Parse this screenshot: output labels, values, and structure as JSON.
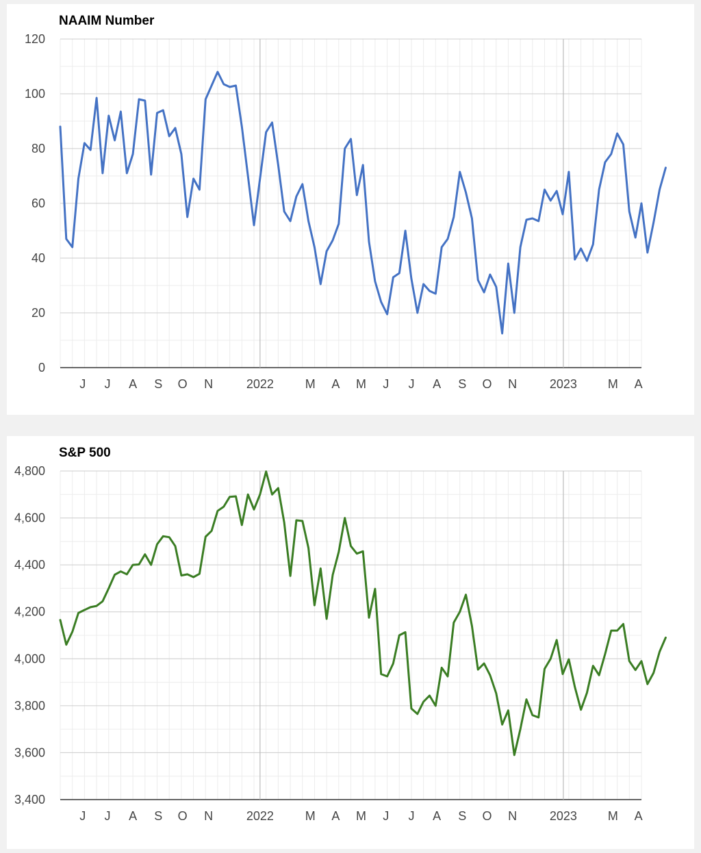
{
  "chart_data": [
    {
      "type": "line",
      "title": "NAAIM Number",
      "color": "#4472c4",
      "ylim": [
        0,
        120
      ],
      "yticks": [
        0,
        20,
        40,
        60,
        80,
        100,
        120
      ],
      "ytick_labels": [
        "0",
        "20",
        "40",
        "60",
        "80",
        "100",
        "120"
      ],
      "grid": true,
      "xlim": [
        0,
        96
      ],
      "x_tick_labels": [
        {
          "label": "J",
          "x": 3.7
        },
        {
          "label": "J",
          "x": 7.8
        },
        {
          "label": "A",
          "x": 12.0
        },
        {
          "label": "S",
          "x": 16.2
        },
        {
          "label": "O",
          "x": 20.2
        },
        {
          "label": "N",
          "x": 24.5
        },
        {
          "label": "2022",
          "x": 33.0
        },
        {
          "label": "M",
          "x": 41.3
        },
        {
          "label": "A",
          "x": 45.5
        },
        {
          "label": "M",
          "x": 49.7
        },
        {
          "label": "J",
          "x": 53.8
        },
        {
          "label": "J",
          "x": 58.0
        },
        {
          "label": "A",
          "x": 62.2
        },
        {
          "label": "S",
          "x": 66.4
        },
        {
          "label": "O",
          "x": 70.5
        },
        {
          "label": "N",
          "x": 74.7
        },
        {
          "label": "2023",
          "x": 83.1
        },
        {
          "label": "M",
          "x": 91.3
        },
        {
          "label": "A",
          "x": 95.5
        }
      ],
      "values": [
        88.0,
        47.0,
        44.0,
        69.0,
        82.0,
        79.5,
        98.5,
        71.0,
        92.0,
        83.0,
        93.5,
        71.0,
        78.0,
        98.0,
        97.5,
        70.5,
        93.0,
        94.0,
        84.5,
        87.5,
        78.0,
        55.0,
        69.0,
        65.0,
        98.0,
        103.0,
        108.0,
        103.5,
        102.5,
        103.0,
        88.0,
        70.0,
        52.0,
        69.0,
        86.0,
        89.5,
        74.0,
        57.0,
        53.5,
        62.5,
        67.0,
        53.5,
        44.0,
        30.5,
        42.5,
        46.5,
        52.5,
        80.0,
        83.5,
        63.0,
        74.0,
        46.0,
        31.5,
        24.0,
        19.5,
        33.0,
        34.5,
        50.0,
        32.5,
        20.0,
        30.5,
        28.0,
        27.0,
        44.0,
        47.0,
        55.0,
        71.5,
        64.0,
        54.5,
        32.0,
        27.5,
        34.0,
        29.5,
        12.5,
        38.0,
        20.0,
        44.0,
        54.0,
        54.5,
        53.5,
        65.0,
        61.0,
        64.5,
        56.0,
        71.5,
        39.5,
        43.5,
        39.0,
        45.0,
        65.0,
        75.0,
        78.0,
        85.5,
        81.5,
        57.0,
        47.5,
        60.0,
        42.0,
        53.0,
        65.0,
        73.0
      ]
    },
    {
      "type": "line",
      "title": "S&P 500",
      "color": "#3a7d23",
      "ylim": [
        3400,
        4800
      ],
      "yticks": [
        3400,
        3600,
        3800,
        4000,
        4200,
        4400,
        4600,
        4800
      ],
      "ytick_labels": [
        "3,400",
        "3,600",
        "3,800",
        "4,000",
        "4,200",
        "4,400",
        "4,600",
        "4,800"
      ],
      "grid": true,
      "xlim": [
        0,
        96
      ],
      "x_tick_labels": [
        {
          "label": "J",
          "x": 3.7
        },
        {
          "label": "J",
          "x": 7.8
        },
        {
          "label": "A",
          "x": 12.0
        },
        {
          "label": "S",
          "x": 16.2
        },
        {
          "label": "O",
          "x": 20.2
        },
        {
          "label": "N",
          "x": 24.5
        },
        {
          "label": "2022",
          "x": 33.0
        },
        {
          "label": "M",
          "x": 41.3
        },
        {
          "label": "A",
          "x": 45.5
        },
        {
          "label": "M",
          "x": 49.7
        },
        {
          "label": "J",
          "x": 53.8
        },
        {
          "label": "J",
          "x": 58.0
        },
        {
          "label": "A",
          "x": 62.2
        },
        {
          "label": "S",
          "x": 66.4
        },
        {
          "label": "O",
          "x": 70.5
        },
        {
          "label": "N",
          "x": 74.7
        },
        {
          "label": "2023",
          "x": 83.1
        },
        {
          "label": "M",
          "x": 91.3
        },
        {
          "label": "A",
          "x": 95.5
        }
      ],
      "values": [
        4165,
        4060,
        4115,
        4195,
        4208,
        4220,
        4225,
        4245,
        4300,
        4358,
        4372,
        4360,
        4400,
        4402,
        4445,
        4400,
        4488,
        4522,
        4518,
        4480,
        4355,
        4360,
        4348,
        4362,
        4520,
        4545,
        4630,
        4648,
        4690,
        4692,
        4570,
        4700,
        4636,
        4700,
        4798,
        4700,
        4727,
        4580,
        4353,
        4590,
        4587,
        4472,
        4228,
        4385,
        4170,
        4357,
        4455,
        4600,
        4480,
        4448,
        4458,
        4175,
        4298,
        3935,
        3925,
        3980,
        4100,
        4113,
        3788,
        3765,
        3817,
        3843,
        3800,
        3962,
        3925,
        4154,
        4200,
        4273,
        4140,
        3954,
        3980,
        3930,
        3853,
        3720,
        3780,
        3590,
        3700,
        3827,
        3760,
        3750,
        3957,
        4000,
        4080,
        3935,
        3998,
        3880,
        3783,
        3855,
        3970,
        3930,
        4020,
        4120,
        4120,
        4148,
        3990,
        3952,
        3990,
        3892,
        3940,
        4030,
        4090
      ]
    }
  ]
}
